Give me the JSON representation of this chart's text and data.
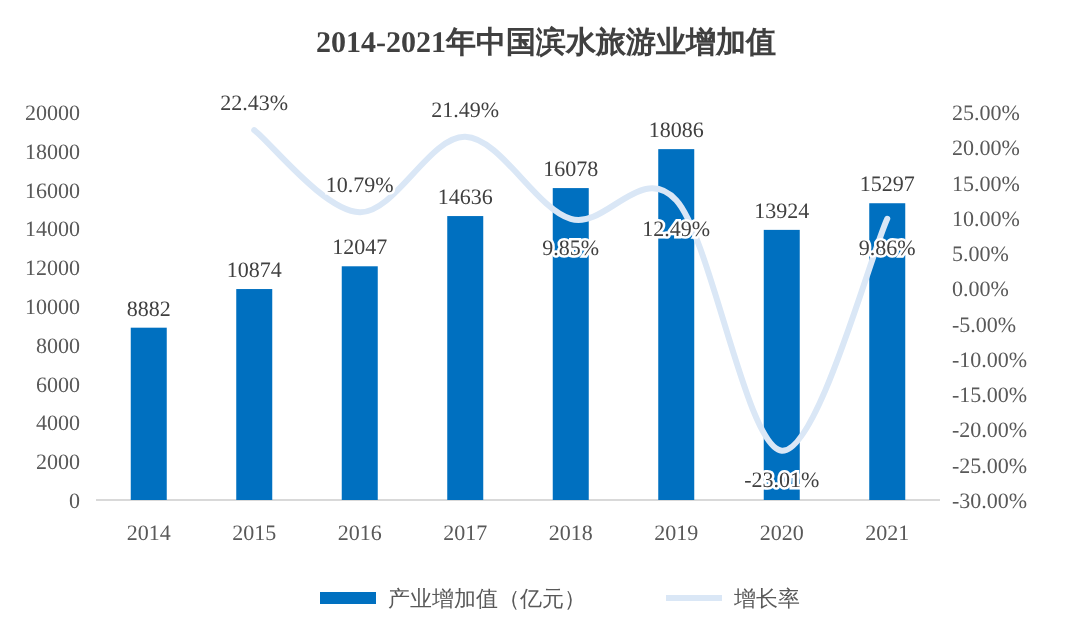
{
  "chart_data": {
    "type": "bar",
    "title": "2014-2021年中国滨水旅游业增加值",
    "categories": [
      "2014",
      "2015",
      "2016",
      "2017",
      "2018",
      "2019",
      "2020",
      "2021"
    ],
    "series": [
      {
        "name": "产业增加值（亿元）",
        "color": "#0070c0",
        "values": [
          8882,
          10874,
          12047,
          14636,
          16078,
          18086,
          13924,
          15297
        ],
        "value_labels": [
          "8882",
          "10874",
          "12047",
          "14636",
          "16078",
          "18086",
          "13924",
          "15297"
        ]
      },
      {
        "name": "增长率",
        "type": "line",
        "axis": "y2",
        "color": "#dae7f6",
        "values": [
          null,
          22.43,
          10.79,
          21.49,
          9.85,
          12.49,
          -23.01,
          9.86
        ],
        "value_labels": [
          null,
          "22.43%",
          "10.79%",
          "21.49%",
          "9.85%",
          "12.49%",
          "-23.01%",
          "9.86%"
        ]
      }
    ],
    "ylim": [
      0,
      20000
    ],
    "yticks": [
      0,
      2000,
      4000,
      6000,
      8000,
      10000,
      12000,
      14000,
      16000,
      18000,
      20000
    ],
    "y2lim": [
      -30,
      25
    ],
    "y2ticks": [
      {
        "value": 25,
        "label": "25.00%"
      },
      {
        "value": 20,
        "label": "20.00%"
      },
      {
        "value": 15,
        "label": "15.00%"
      },
      {
        "value": 10,
        "label": "10.00%"
      },
      {
        "value": 5,
        "label": "5.00%"
      },
      {
        "value": 0,
        "label": "0.00%"
      },
      {
        "value": -5,
        "label": "-5.00%"
      },
      {
        "value": -10,
        "label": "-10.00%"
      },
      {
        "value": -15,
        "label": "-15.00%"
      },
      {
        "value": -20,
        "label": "-20.00%"
      },
      {
        "value": -25,
        "label": "-25.00%"
      },
      {
        "value": -30,
        "label": "-30.00%"
      }
    ],
    "legend": "bottom"
  }
}
